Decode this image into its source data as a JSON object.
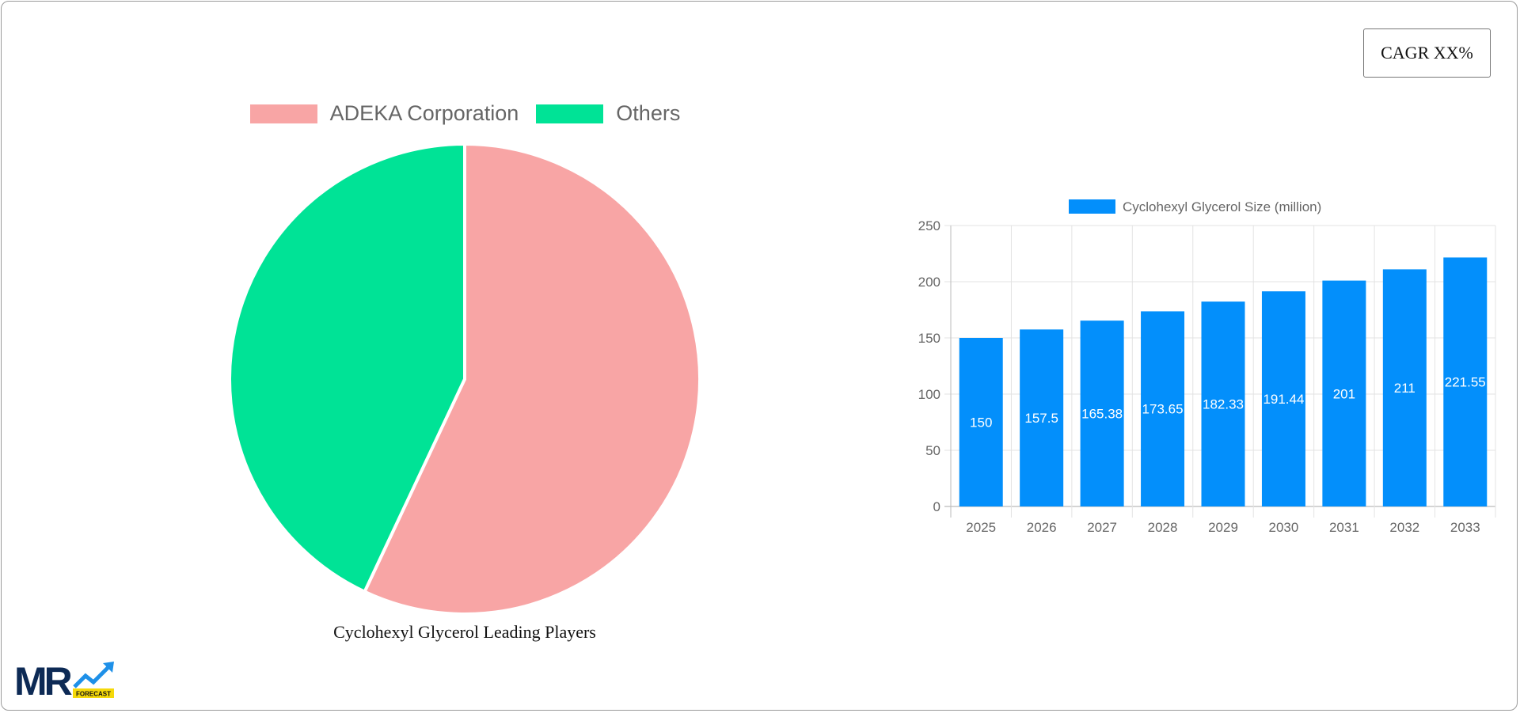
{
  "cagr_label": "CAGR XX%",
  "pie": {
    "caption": "Cyclohexyl Glycerol Leading Players",
    "legend": [
      "ADEKA Corporation",
      "Others"
    ]
  },
  "logo": {
    "text": "MR",
    "badge": "FORECAST"
  },
  "chart_data": [
    {
      "type": "pie",
      "title": "Cyclohexyl Glycerol Leading Players",
      "labels": [
        "ADEKA Corporation",
        "Others"
      ],
      "values": [
        57,
        43
      ],
      "colors": [
        "#f8a5a5",
        "#00e396"
      ],
      "legend": "top"
    },
    {
      "type": "bar",
      "categories": [
        "2025",
        "2026",
        "2027",
        "2028",
        "2029",
        "2030",
        "2031",
        "2032",
        "2033"
      ],
      "series": [
        {
          "name": "Cyclohexyl Glycerol Size (million)",
          "values": [
            150,
            157.5,
            165.38,
            173.65,
            182.33,
            191.44,
            201,
            211,
            221.55
          ],
          "color": "#038ffb"
        }
      ],
      "data_labels": [
        "150",
        "157.5",
        "165.38",
        "173.65",
        "182.33",
        "191.44",
        "201",
        "211",
        "221.55"
      ],
      "ylim": [
        0,
        250
      ],
      "yticks": [
        "0",
        "50",
        "100",
        "150",
        "200",
        "250"
      ],
      "grid": true,
      "legend": "top"
    }
  ]
}
